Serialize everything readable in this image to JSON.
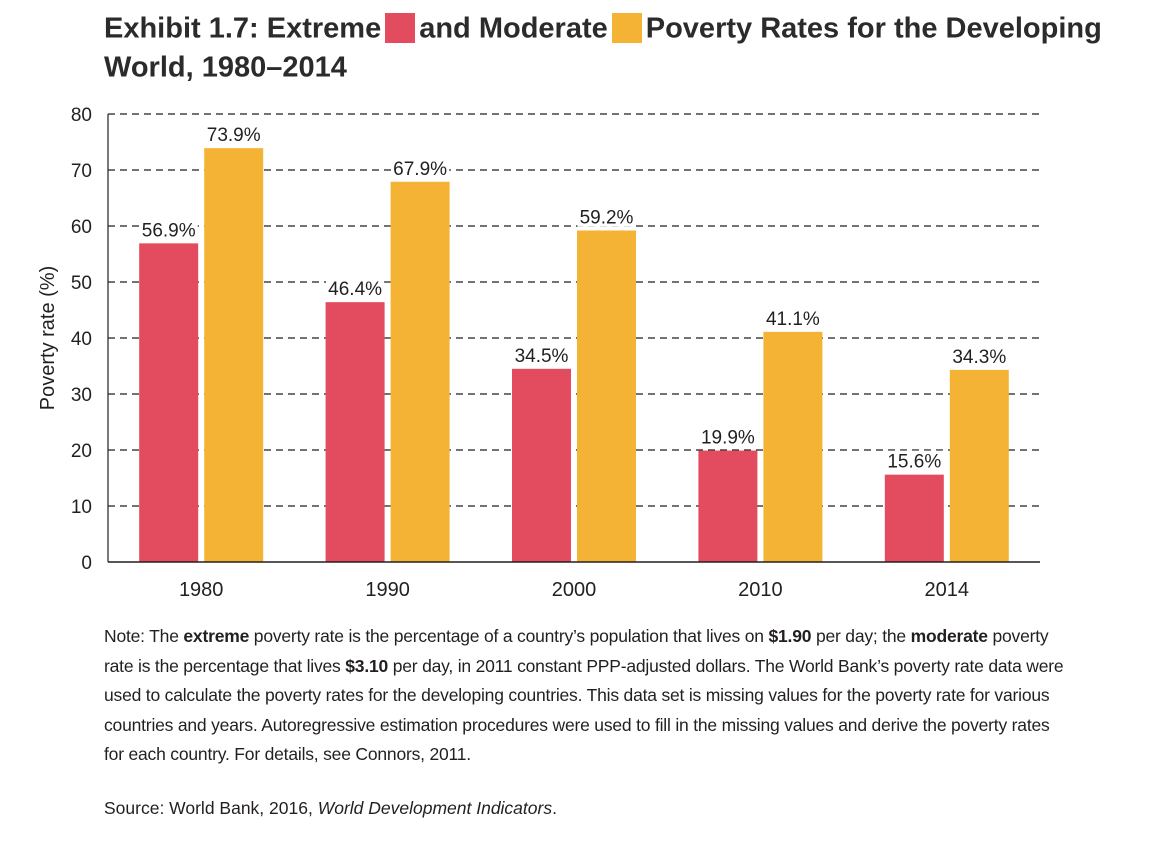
{
  "title": {
    "part1": "Exhibit 1.7: Extreme",
    "part2": "and Moderate",
    "part3": "Poverty Rates for the Developing World, 1980–2014"
  },
  "colors": {
    "extreme": "#e34b5f",
    "moderate": "#f5b335",
    "axis": "#231f20",
    "grid": "#231f20"
  },
  "chart_data": {
    "type": "bar",
    "title": "Exhibit 1.7: Extreme and Moderate Poverty Rates for the Developing World, 1980–2014",
    "categories": [
      "1980",
      "1990",
      "2000",
      "2010",
      "2014"
    ],
    "series": [
      {
        "name": "Extreme",
        "values": [
          56.9,
          46.4,
          34.5,
          19.9,
          15.6
        ],
        "labels": [
          "56.9%",
          "46.4%",
          "34.5%",
          "19.9%",
          "15.6%"
        ]
      },
      {
        "name": "Moderate",
        "values": [
          73.9,
          67.9,
          59.2,
          41.1,
          34.3
        ],
        "labels": [
          "73.9%",
          "67.9%",
          "59.2%",
          "41.1%",
          "34.3%"
        ]
      }
    ],
    "xlabel": "",
    "ylabel": "Poverty rate (%)",
    "ylim": [
      0,
      80
    ],
    "yticks": [
      0,
      10,
      20,
      30,
      40,
      50,
      60,
      70,
      80
    ],
    "grid": "dashed horizontal"
  },
  "note": {
    "prefix": "Note: The ",
    "extreme_word": "extreme",
    "mid1": " poverty rate is the percentage of a country’s population that lives on ",
    "amount1": "$1.90",
    "mid2": " per day; the ",
    "moderate_word": "moderate",
    "mid3": " poverty rate is the percentage that lives ",
    "amount2": "$3.10",
    "rest": " per day, in 2011 constant PPP-adjusted dollars. The World Bank’s poverty rate data were used to calculate the poverty rates for the developing countries. This data set is missing values for the poverty rate for various countries and years. Autoregressive estimation procedures were used to fill in the missing values and derive the poverty rates for each country. For details, see Connors, 2011."
  },
  "source": {
    "prefix": "Source: World Bank, 2016, ",
    "title": "World Development Indicators",
    "suffix": "."
  }
}
